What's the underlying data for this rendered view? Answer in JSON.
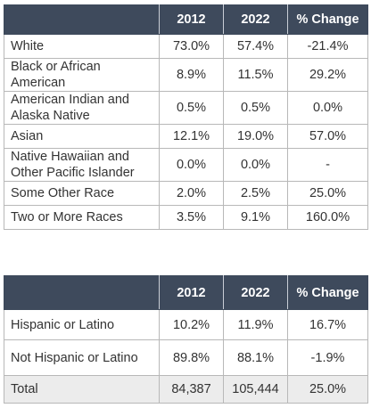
{
  "race_table": {
    "headers": [
      "",
      "2012",
      "2022",
      "% Change"
    ],
    "rows": [
      {
        "label": "White",
        "v2012": "73.0%",
        "v2022": "57.4%",
        "change": "-21.4%"
      },
      {
        "label": "Black or African American",
        "v2012": "8.9%",
        "v2022": "11.5%",
        "change": "29.2%"
      },
      {
        "label": "American Indian and Alaska Native",
        "v2012": "0.5%",
        "v2022": "0.5%",
        "change": "0.0%"
      },
      {
        "label": "Asian",
        "v2012": "12.1%",
        "v2022": "19.0%",
        "change": "57.0%"
      },
      {
        "label": "Native Hawaiian and Other Pacific Islander",
        "v2012": "0.0%",
        "v2022": "0.0%",
        "change": "-"
      },
      {
        "label": "Some Other Race",
        "v2012": "2.0%",
        "v2022": "2.5%",
        "change": "25.0%"
      },
      {
        "label": "Two or More Races",
        "v2012": "3.5%",
        "v2022": "9.1%",
        "change": "160.0%"
      }
    ]
  },
  "ethnicity_table": {
    "headers": [
      "",
      "2012",
      "2022",
      "% Change"
    ],
    "rows": [
      {
        "label": "Hispanic or Latino",
        "v2012": "10.2%",
        "v2022": "11.9%",
        "change": "16.7%"
      },
      {
        "label": "Not Hispanic or Latino",
        "v2012": "89.8%",
        "v2022": "88.1%",
        "change": "-1.9%"
      }
    ],
    "total": {
      "label": "Total",
      "v2012": "84,387",
      "v2022": "105,444",
      "change": "25.0%"
    }
  },
  "colors": {
    "header_bg": "#3e4a5c",
    "header_text": "#ffffff",
    "total_bg": "#ececec",
    "border": "#b8b8b8"
  }
}
